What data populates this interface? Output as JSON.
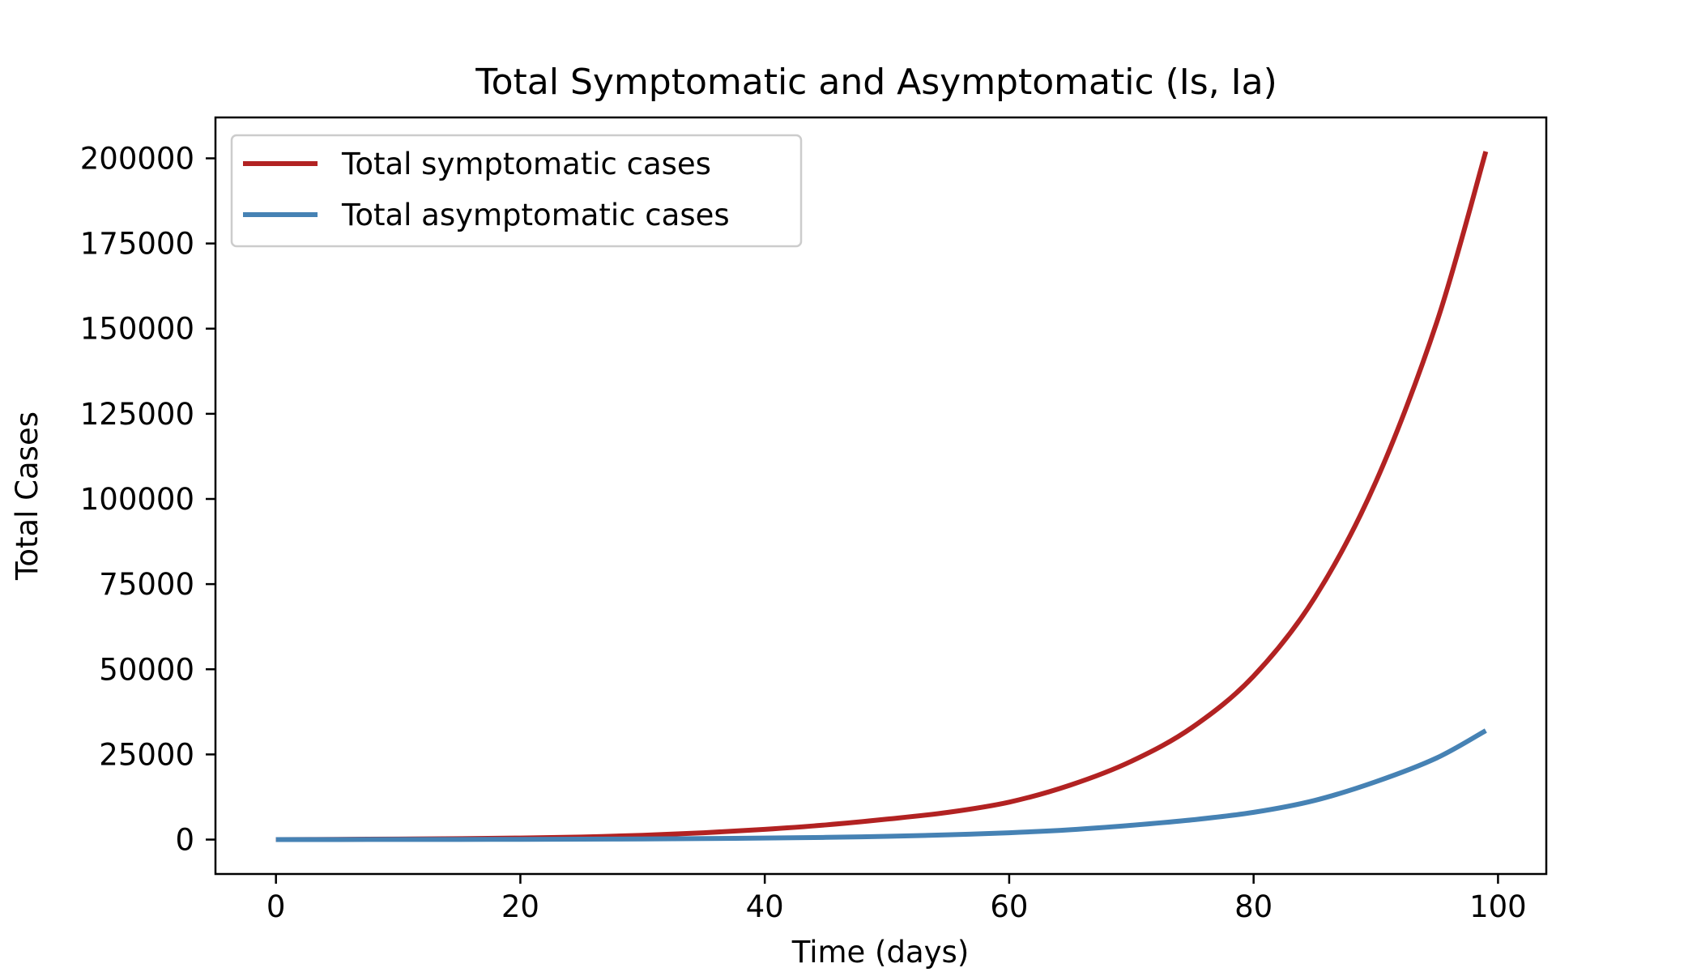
{
  "chart_data": {
    "type": "line",
    "title": "Total Symptomatic and Asymptomatic (Is, Ia)",
    "xlabel": "Time (days)",
    "ylabel": "Total Cases",
    "xlim": [
      -4.95,
      103.95
    ],
    "ylim": [
      -10100,
      212000
    ],
    "xticks": [
      0,
      20,
      40,
      60,
      80,
      100
    ],
    "yticks": [
      0,
      25000,
      50000,
      75000,
      100000,
      125000,
      150000,
      175000,
      200000
    ],
    "grid": false,
    "legend_position": "top-left",
    "x": [
      0,
      5,
      10,
      15,
      20,
      25,
      30,
      35,
      40,
      45,
      50,
      55,
      60,
      65,
      70,
      75,
      80,
      85,
      90,
      95,
      99
    ],
    "series": [
      {
        "name": "Total symptomatic cases",
        "color": "#b22222",
        "values": [
          0,
          80,
          150,
          270,
          460,
          760,
          1250,
          2000,
          3000,
          4300,
          6000,
          8000,
          11000,
          16000,
          23000,
          33000,
          48000,
          71000,
          105000,
          152000,
          202000
        ]
      },
      {
        "name": "Total asymptomatic cases",
        "color": "#4682b4",
        "values": [
          0,
          15,
          30,
          50,
          80,
          125,
          190,
          290,
          440,
          650,
          950,
          1400,
          2000,
          2900,
          4200,
          5800,
          8000,
          11500,
          17000,
          24000,
          32000
        ]
      }
    ]
  }
}
